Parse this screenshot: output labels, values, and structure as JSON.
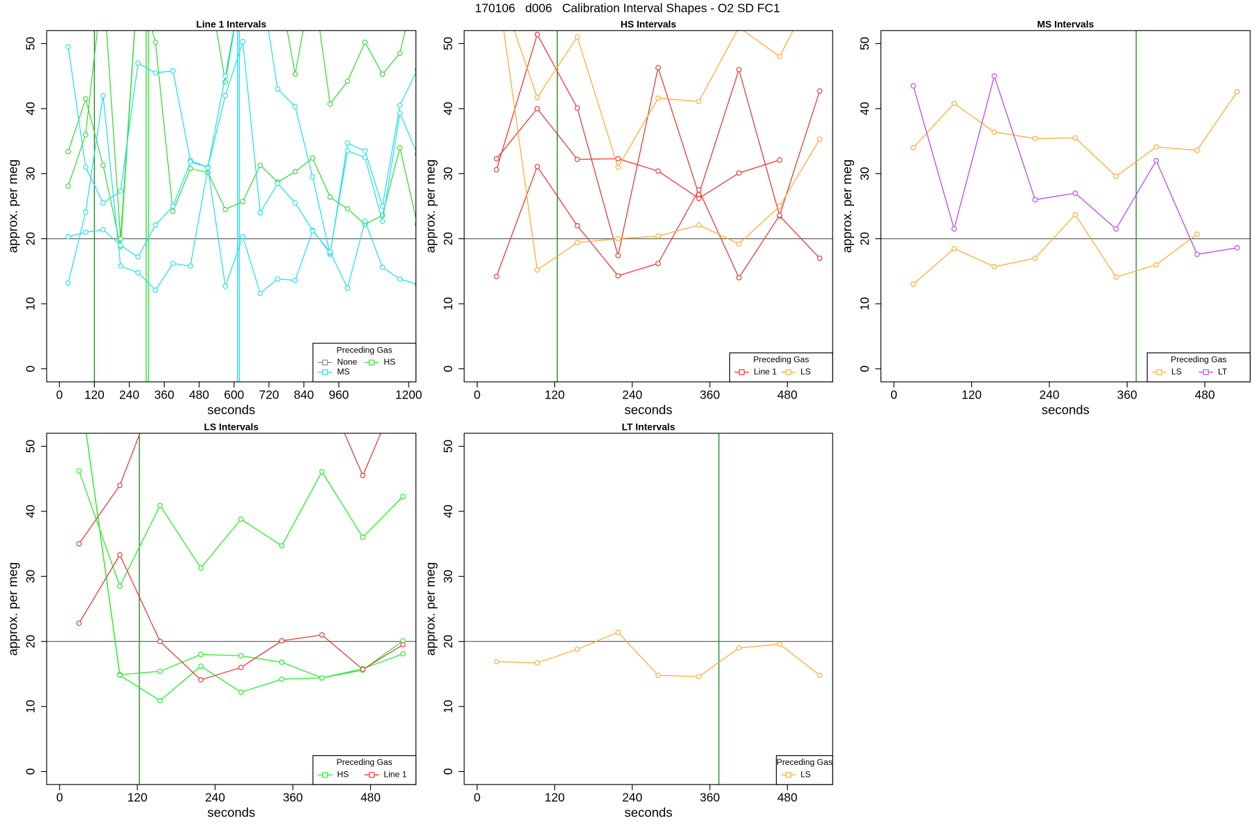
{
  "title": "170106   d006   Calibration Interval Shapes - O2 SD FC1",
  "chart_data": [
    {
      "type": "line",
      "title": "Line 1 Intervals",
      "xlabel": "seconds",
      "ylabel": "approx. per meg",
      "xlim": [
        -44,
        1225
      ],
      "ylim": [
        -2,
        52
      ],
      "xticks": [
        0,
        120,
        240,
        360,
        480,
        600,
        720,
        840,
        960,
        1200
      ],
      "yticks": [
        0,
        10,
        20,
        30,
        40,
        50
      ],
      "hline": 20,
      "vlines": [
        {
          "x": 120,
          "color": "#228b22"
        },
        {
          "x": 298,
          "color": "#33dd33"
        },
        {
          "x": 306,
          "color": "#33dd33"
        },
        {
          "x": 612,
          "color": "#22e0ee"
        },
        {
          "x": 618,
          "color": "#22e0ee"
        }
      ],
      "x": [
        30,
        90,
        150,
        210,
        270,
        330,
        390,
        450,
        510,
        570,
        630,
        690,
        750,
        810,
        870,
        930,
        990,
        1050,
        1110,
        1170,
        1230
      ],
      "legend_title": "Preceding Gas",
      "legend": "bottom-right",
      "series": [
        {
          "name": "None",
          "color": "#888888",
          "runs": []
        },
        {
          "name": "HS",
          "color": "#33dd33",
          "runs": [
            {
              "values": [
                33.4,
                41.5,
                31.3,
                18.8,
                60,
                50.2,
                24.2,
                30.8,
                30.2,
                24.5,
                25.7,
                31.3,
                28.7,
                30.3,
                32.4,
                26.4,
                24.6,
                22.2,
                23.6,
                34,
                22.2
              ]
            },
            {
              "values": [
                28.1,
                36,
                60,
                20,
                60,
                60,
                60,
                60,
                60,
                44.1,
                60,
                60,
                60,
                45.3,
                60,
                40.7,
                44.2,
                50.2,
                45.3,
                48.5,
                60
              ]
            }
          ]
        },
        {
          "name": "MS",
          "color": "#22e0ee",
          "runs": [
            {
              "values": [
                49.5,
                31,
                25.5,
                27.3,
                47,
                45.5,
                45.8,
                32,
                31,
                45,
                60,
                60,
                43,
                40.3,
                29.5,
                17.6,
                34.7,
                33.5,
                25,
                40.5,
                46
              ]
            },
            {
              "values": [
                20.3,
                21,
                21.4,
                19,
                17.2,
                22.1,
                25,
                31.8,
                31,
                42,
                50.3,
                24,
                28.5,
                25.5,
                21.3,
                17.8,
                33.5,
                32.5,
                22.7,
                39.3,
                33
              ]
            },
            {
              "values": [
                13.2,
                24.1,
                42,
                15.8,
                14.8,
                12.1,
                16.2,
                15.8,
                30.9,
                12.7,
                20.3,
                11.6,
                13.8,
                13.6,
                21.2,
                18,
                12.4,
                22.7,
                15.6,
                13.8,
                13
              ]
            }
          ]
        }
      ]
    },
    {
      "type": "line",
      "title": "HS Intervals",
      "xlabel": "seconds",
      "ylabel": "approx. per meg",
      "xlim": [
        -20,
        550
      ],
      "ylim": [
        -2,
        52
      ],
      "xticks": [
        0,
        120,
        240,
        360,
        480
      ],
      "yticks": [
        0,
        10,
        20,
        30,
        40,
        50
      ],
      "hline": 20,
      "vlines": [
        {
          "x": 124,
          "color": "#228b22"
        }
      ],
      "x": [
        30,
        93,
        155,
        218,
        280,
        343,
        405,
        468,
        530
      ],
      "legend_title": "Preceding Gas",
      "legend": "bottom-right",
      "series": [
        {
          "name": "Line 1",
          "color": "#ee3333",
          "runs": [
            {
              "values": [
                32.3,
                40,
                32.2,
                32.3,
                30.4,
                26.2,
                30.1,
                32.1,
                null
              ]
            },
            {
              "values": [
                30.6,
                51.4,
                40.1,
                17.4,
                46.3,
                26.8,
                46,
                23.5,
                17
              ]
            },
            {
              "values": [
                14.2,
                31.1,
                22,
                14.3,
                16.2,
                27.5,
                14,
                23.6,
                42.7
              ]
            }
          ]
        },
        {
          "name": "LS",
          "color": "#ffaa33",
          "runs": [
            {
              "values": [
                60,
                41.7,
                51,
                31,
                41.6,
                41.1,
                52.5,
                48,
                60
              ]
            },
            {
              "values": [
                60,
                15.2,
                19.4,
                20,
                20.4,
                22.1,
                19.2,
                25,
                35.3
              ]
            }
          ]
        }
      ]
    },
    {
      "type": "line",
      "title": "MS Intervals",
      "xlabel": "seconds",
      "ylabel": "approx. per meg",
      "xlim": [
        -20,
        550
      ],
      "ylim": [
        -2,
        52
      ],
      "xticks": [
        0,
        120,
        240,
        360,
        480
      ],
      "yticks": [
        0,
        10,
        20,
        30,
        40,
        50
      ],
      "hline": 20,
      "vlines": [
        {
          "x": 374,
          "color": "#228b22"
        }
      ],
      "x": [
        30,
        93,
        155,
        218,
        280,
        343,
        405,
        468,
        530
      ],
      "legend_title": "Preceding Gas",
      "legend": "bottom-right",
      "series": [
        {
          "name": "LS",
          "color": "#ffaa33",
          "runs": [
            {
              "values": [
                34,
                40.8,
                36.4,
                35.4,
                35.5,
                29.6,
                34.1,
                33.6,
                42.6
              ]
            },
            {
              "values": [
                13,
                18.5,
                15.7,
                17,
                23.7,
                14.1,
                16,
                20.7,
                null
              ]
            }
          ]
        },
        {
          "name": "LT",
          "color": "#bb44ee",
          "runs": [
            {
              "values": [
                43.5,
                21.5,
                45,
                26,
                27,
                21.5,
                32,
                17.6,
                18.6
              ]
            }
          ]
        }
      ]
    },
    {
      "type": "line",
      "title": "LS Intervals",
      "xlabel": "seconds",
      "ylabel": "approx. per meg",
      "xlim": [
        -20,
        550
      ],
      "ylim": [
        -2,
        52
      ],
      "xticks": [
        0,
        120,
        240,
        360,
        480
      ],
      "yticks": [
        0,
        10,
        20,
        30,
        40,
        50
      ],
      "hline": 20,
      "vlines": [
        {
          "x": 123,
          "color": "#228b22"
        }
      ],
      "x": [
        30,
        93,
        155,
        218,
        280,
        343,
        405,
        468,
        530
      ],
      "legend_title": "Preceding Gas",
      "legend": "bottom-right",
      "series": [
        {
          "name": "HS",
          "color": "#22ee22",
          "runs": [
            {
              "values": [
                46.2,
                28.5,
                40.9,
                31.3,
                38.8,
                34.7,
                46.1,
                36,
                42.3
              ]
            },
            {
              "values": [
                60,
                14.9,
                15.4,
                18,
                17.8,
                16.8,
                14.4,
                15.8,
                18.1
              ]
            },
            {
              "values": [
                60,
                14.8,
                10.9,
                16.2,
                12.2,
                14.2,
                14.4,
                15.6,
                20.1
              ]
            }
          ]
        },
        {
          "name": "Line 1",
          "color": "#ee3333",
          "runs": [
            {
              "values": [
                35,
                44,
                60,
                60,
                60,
                60,
                60,
                45.5,
                60
              ]
            },
            {
              "values": [
                22.8,
                33.3,
                20,
                14.1,
                16,
                20.1,
                21,
                15.7,
                19.5
              ]
            }
          ]
        }
      ]
    },
    {
      "type": "line",
      "title": "LT Intervals",
      "xlabel": "seconds",
      "ylabel": "approx. per meg",
      "xlim": [
        -20,
        550
      ],
      "ylim": [
        -2,
        52
      ],
      "xticks": [
        0,
        120,
        240,
        360,
        480
      ],
      "yticks": [
        0,
        10,
        20,
        30,
        40,
        50
      ],
      "hline": 20,
      "vlines": [
        {
          "x": 374,
          "color": "#228b22"
        }
      ],
      "x": [
        30,
        93,
        155,
        218,
        280,
        343,
        405,
        468,
        530
      ],
      "legend_title": "Preceding Gas",
      "legend": "bottom-right",
      "series": [
        {
          "name": "LS",
          "color": "#ffaa33",
          "runs": [
            {
              "values": [
                16.9,
                16.7,
                18.8,
                21.4,
                14.8,
                14.6,
                19,
                19.6,
                14.8
              ]
            }
          ]
        }
      ]
    }
  ]
}
